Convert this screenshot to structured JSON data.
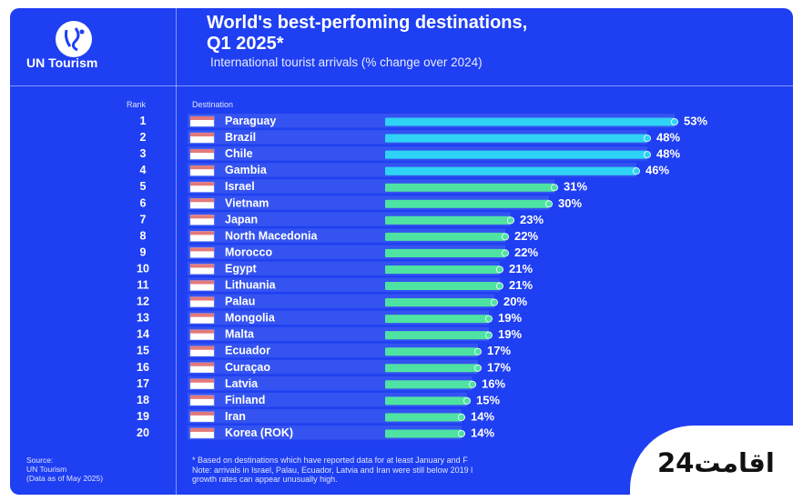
{
  "header": {
    "brand": "UN Tourism",
    "title": "World's best-perfoming destinations,\nQ1 2025*",
    "subtitle": "International tourist arrivals (% change over 2024)"
  },
  "columns": {
    "rank": "Rank",
    "destination": "Destination"
  },
  "chart_data": {
    "type": "bar",
    "orientation": "horizontal",
    "title": "World's best-perfoming destinations, Q1 2025*",
    "subtitle": "International tourist arrivals (% change over 2024)",
    "categories": [
      "Paraguay",
      "Brazil",
      "Chile",
      "Gambia",
      "Israel",
      "Vietnam",
      "Japan",
      "North Macedonia",
      "Morocco",
      "Egypt",
      "Lithuania",
      "Palau",
      "Mongolia",
      "Malta",
      "Ecuador",
      "Curaçao",
      "Latvia",
      "Finland",
      "Iran",
      "Korea (ROK)"
    ],
    "ranks": [
      1,
      2,
      3,
      4,
      5,
      6,
      7,
      8,
      9,
      10,
      11,
      12,
      13,
      14,
      15,
      16,
      17,
      18,
      19,
      20
    ],
    "values": [
      53,
      48,
      48,
      46,
      31,
      30,
      23,
      22,
      22,
      21,
      21,
      20,
      19,
      19,
      17,
      17,
      16,
      15,
      14,
      14
    ],
    "labels": [
      "53%",
      "48%",
      "48%",
      "46%",
      "31%",
      "30%",
      "23%",
      "22%",
      "22%",
      "21%",
      "21%",
      "20%",
      "19%",
      "19%",
      "17%",
      "17%",
      "16%",
      "15%",
      "14%",
      "14%"
    ],
    "xlim": [
      0,
      53
    ],
    "grid": false,
    "colors": {
      "bar_top": "#2fd3f5",
      "bar_rest": "#4fe3a3",
      "row_band": "#3453f0"
    }
  },
  "footer": {
    "source": [
      "Source:",
      "UN Tourism",
      "(Data as of May 2025)"
    ],
    "notes": [
      "* Based on destinations which have reported data for at least January and F",
      "Note: arrivals in Israel, Palau, Ecuador, Latvia and Iran were still below 2019 l",
      "growth rates can appear unusually high."
    ]
  },
  "watermark": {
    "text": "اقامت24"
  }
}
